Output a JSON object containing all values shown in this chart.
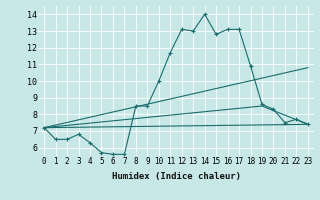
{
  "xlabel": "Humidex (Indice chaleur)",
  "xlim": [
    -0.5,
    23.5
  ],
  "ylim": [
    5.5,
    14.5
  ],
  "xticks": [
    0,
    1,
    2,
    3,
    4,
    5,
    6,
    7,
    8,
    9,
    10,
    11,
    12,
    13,
    14,
    15,
    16,
    17,
    18,
    19,
    20,
    21,
    22,
    23
  ],
  "yticks": [
    6,
    7,
    8,
    9,
    10,
    11,
    12,
    13,
    14
  ],
  "bg_color": "#c8e8e8",
  "grid_color": "#ffffff",
  "line_color": "#1a6b6b",
  "line1": {
    "x": [
      0,
      1,
      2,
      3,
      4,
      5,
      6,
      7,
      8,
      9,
      10,
      11,
      12,
      13,
      14,
      15,
      16,
      17,
      18,
      19,
      20,
      21,
      22,
      23
    ],
    "y": [
      7.2,
      6.5,
      6.5,
      6.8,
      6.3,
      5.7,
      5.6,
      5.6,
      8.5,
      8.5,
      10.0,
      11.7,
      13.1,
      13.0,
      14.0,
      12.8,
      13.1,
      13.1,
      10.9,
      8.6,
      8.3,
      7.5,
      7.7,
      7.4
    ]
  },
  "line2": {
    "x": [
      0,
      23
    ],
    "y": [
      7.2,
      10.8
    ]
  },
  "line3": {
    "x": [
      0,
      19,
      23
    ],
    "y": [
      7.2,
      8.5,
      7.4
    ]
  },
  "line4": {
    "x": [
      0,
      23
    ],
    "y": [
      7.2,
      7.4
    ]
  }
}
